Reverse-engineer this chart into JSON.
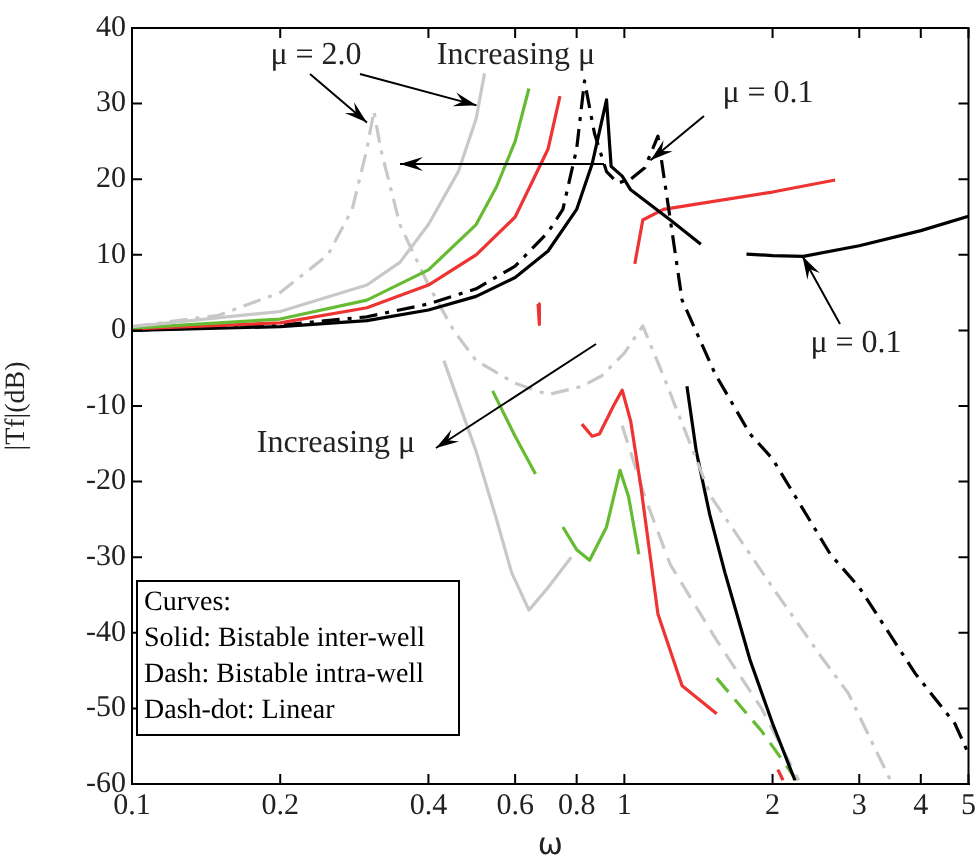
{
  "chart_data": {
    "type": "line",
    "xlabel": "ω",
    "ylabel": "|Tf|(dB)",
    "log": "x",
    "grid": false,
    "legend": false,
    "marker": "none",
    "xlim": [
      0.1,
      5
    ],
    "xticks": [
      0.1,
      0.2,
      0.4,
      0.6,
      0.8,
      1,
      2,
      3,
      4,
      5
    ],
    "ylim": [
      -60,
      40
    ],
    "yticks": [
      -60,
      -50,
      -40,
      -30,
      -20,
      -10,
      0,
      10,
      20,
      30,
      40
    ],
    "annotations": [
      {
        "text": "μ = 2.0",
        "x": 0.3,
        "y": 27.5
      },
      "Increasing μ",
      {
        "text": "μ = 0.1",
        "x": 1.13,
        "y": 22.5
      },
      {
        "text": "μ = 0.1",
        "x": 2.3,
        "y": 9.8
      },
      "Increasing μ",
      "Curves:",
      "Solid: Bistable inter-well",
      "Dash: Bistable intra-well",
      "Dash-dot: Linear"
    ],
    "series": [
      {
        "color": "#c8c8c8",
        "line_style": "solid",
        "x": [
          0.1,
          0.2,
          0.3,
          0.35,
          0.4,
          0.46,
          0.5,
          0.52
        ],
        "values": [
          0.5,
          2.5,
          6,
          9,
          14,
          21,
          28,
          34
        ]
      },
      {
        "color": "#66bb33",
        "line_style": "solid",
        "x": [
          0.1,
          0.2,
          0.3,
          0.4,
          0.5,
          0.55,
          0.6,
          0.64
        ],
        "values": [
          0.3,
          1.5,
          4,
          8,
          14,
          19,
          25,
          32
        ]
      },
      {
        "color": "#ee3333",
        "line_style": "solid",
        "x": [
          0.1,
          0.2,
          0.3,
          0.4,
          0.5,
          0.6,
          0.7,
          0.74
        ],
        "values": [
          0.2,
          1,
          3,
          6,
          10,
          15,
          24,
          31
        ]
      },
      {
        "color": "#000000",
        "line_style": "solid",
        "x": [
          0.1,
          0.2,
          0.3,
          0.4,
          0.5,
          0.6,
          0.7,
          0.8,
          0.86,
          0.92,
          0.94,
          0.99,
          1.03,
          1.24,
          1.43
        ],
        "values": [
          0,
          0.5,
          1.3,
          2.7,
          4.5,
          7,
          10.5,
          16,
          22,
          30.5,
          21.7,
          20.4,
          18.6,
          14.6,
          11.4
        ]
      },
      {
        "color": "#000000",
        "line_style": "dashdot",
        "x": [
          0.1,
          0.2,
          0.3,
          0.4,
          0.5,
          0.6,
          0.7,
          0.75,
          0.8,
          0.83,
          0.87,
          0.92,
          0.97,
          1.03,
          1.1,
          1.17,
          1.24,
          1.31,
          1.53,
          1.8,
          2,
          2.62,
          3,
          3.9,
          4.69,
          5
        ],
        "values": [
          0,
          0.7,
          1.8,
          3.5,
          5.5,
          8.5,
          13,
          16,
          24,
          33,
          26,
          21,
          19.5,
          20,
          21.5,
          25.7,
          14.6,
          4,
          -5.8,
          -13.7,
          -17,
          -29.6,
          -34,
          -45.4,
          -52,
          -56
        ]
      },
      {
        "color": "#c8c8c8",
        "line_style": "dashdot",
        "x": [
          0.1,
          0.15,
          0.2,
          0.25,
          0.28,
          0.3,
          0.31,
          0.32,
          0.35,
          0.4,
          0.45,
          0.5,
          0.6,
          0.7,
          0.82,
          0.9,
          1,
          1.09,
          1.2,
          1.5,
          2,
          2.5,
          2.85,
          3.5
        ],
        "values": [
          0.5,
          2,
          5,
          10,
          16,
          24,
          29,
          24,
          14,
          6,
          0,
          -4,
          -7,
          -8.5,
          -7.4,
          -6,
          -3,
          0.6,
          -6,
          -22,
          -34,
          -43,
          -48,
          -60
        ]
      },
      {
        "color": "#c8c8c8",
        "line_style": "solid",
        "x": [
          0.43,
          0.5,
          0.55,
          0.59,
          0.64,
          0.7,
          0.78
        ],
        "values": [
          -4,
          -16,
          -25,
          -32,
          -37,
          -34,
          -30
        ]
      },
      {
        "color": "#66bb33",
        "line_style": "solid",
        "x": [
          0.54,
          0.6,
          0.66
        ],
        "values": [
          -8,
          -14,
          -19
        ]
      },
      {
        "color": "#66bb33",
        "line_style": "solid",
        "x": [
          0.75,
          0.8,
          0.85,
          0.92,
          0.98,
          1.02,
          1.07
        ],
        "values": [
          -26,
          -29,
          -30.4,
          -26,
          -18.5,
          -22,
          -29.6
        ]
      },
      {
        "color": "#ee3333",
        "line_style": "solid",
        "x": [
          0.82,
          0.86,
          0.89,
          0.95,
          0.99,
          1.03,
          1.08,
          1.17,
          1.31,
          1.54
        ],
        "values": [
          -12.4,
          -14,
          -13.7,
          -10,
          -7.9,
          -12,
          -20.6,
          -37.5,
          -47,
          -50.7
        ]
      },
      {
        "color": "#ee3333",
        "line_style": "solid",
        "x": [
          0.668,
          0.672
        ],
        "values": [
          3.5,
          0.8
        ]
      },
      {
        "color": "#ee3333",
        "line_style": "solid",
        "x": [
          2.05,
          2.1
        ],
        "values": [
          -58.1,
          -59.5
        ]
      },
      {
        "color": "#ee3333",
        "line_style": "solid",
        "x": [
          1.05,
          1.09,
          1.2,
          1.4,
          2,
          2.68
        ],
        "values": [
          8.8,
          14.6,
          16,
          16.7,
          18.3,
          19.9
        ]
      },
      {
        "color": "#000000",
        "line_style": "solid",
        "x": [
          1.34,
          1.4,
          1.49,
          1.6,
          1.8,
          2,
          2.22
        ],
        "values": [
          -7.4,
          -16,
          -24.3,
          -32,
          -43.6,
          -52,
          -59.5
        ]
      },
      {
        "color": "#000000",
        "line_style": "solid",
        "x": [
          1.77,
          2,
          2.31,
          3,
          4,
          5
        ],
        "values": [
          10.1,
          9.9,
          9.8,
          11.2,
          13.2,
          15.1
        ]
      },
      {
        "color": "#c8c8c8",
        "line_style": "dashed",
        "x": [
          0.99,
          1.1,
          1.24,
          1.54,
          1.9,
          2.26
        ],
        "values": [
          -12.6,
          -22,
          -31,
          -41,
          -50,
          -59.5
        ]
      },
      {
        "color": "#66bb33",
        "line_style": "dashed",
        "x": [
          1.54,
          1.9,
          2.24
        ],
        "values": [
          -46,
          -53,
          -59.5
        ]
      }
    ]
  }
}
